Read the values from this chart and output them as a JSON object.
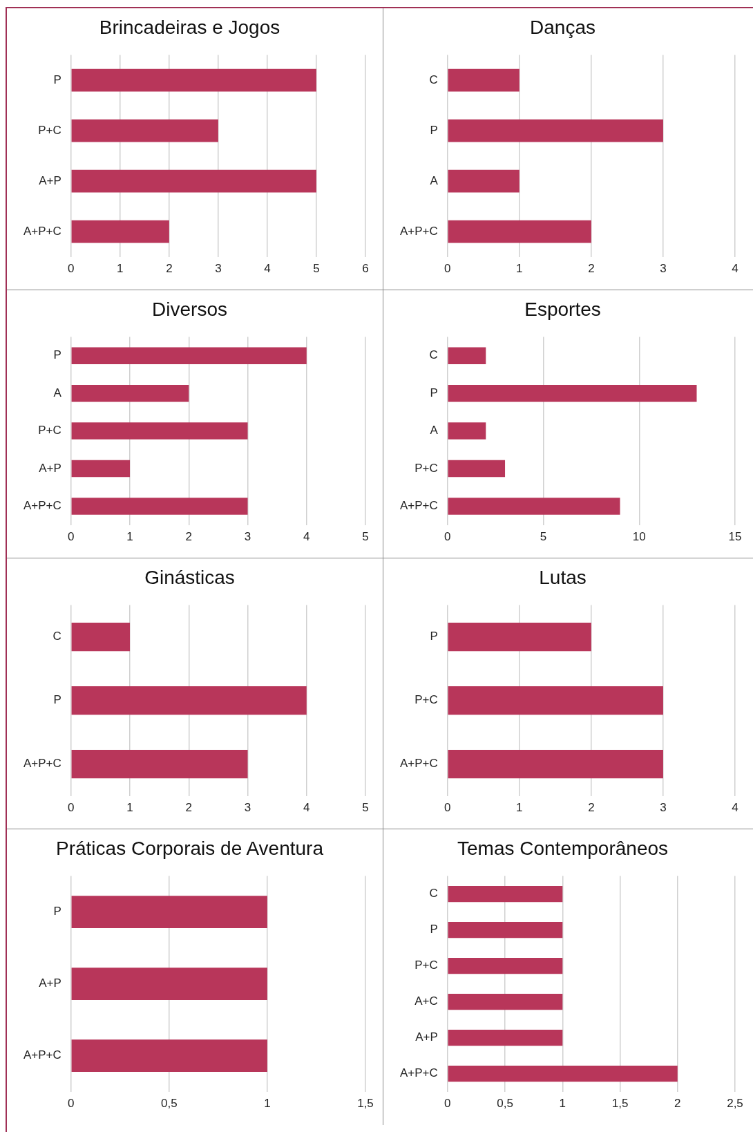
{
  "chart_data": [
    {
      "type": "bar",
      "orientation": "horizontal",
      "title": "Brincadeiras e Jogos",
      "categories": [
        "P",
        "P+C",
        "A+P",
        "A+P+C"
      ],
      "values": [
        5,
        3,
        5,
        2
      ],
      "color": "#b8365a",
      "xlim": [
        0,
        6
      ],
      "xticks": [
        0,
        1,
        2,
        3,
        4,
        5,
        6
      ],
      "grid": "x",
      "legend": false
    },
    {
      "type": "bar",
      "orientation": "horizontal",
      "title": "Danças",
      "categories": [
        "C",
        "P",
        "A",
        "A+P+C"
      ],
      "values": [
        1,
        3,
        1,
        2
      ],
      "color": "#b8365a",
      "xlim": [
        0,
        4
      ],
      "xticks": [
        0,
        1,
        2,
        3,
        4
      ],
      "grid": "x",
      "legend": false
    },
    {
      "type": "bar",
      "orientation": "horizontal",
      "title": "Diversos",
      "categories": [
        "P",
        "A",
        "P+C",
        "A+P",
        "A+P+C"
      ],
      "values": [
        4,
        2,
        3,
        1,
        3
      ],
      "color": "#b8365a",
      "xlim": [
        0,
        5
      ],
      "xticks": [
        0,
        1,
        2,
        3,
        4,
        5
      ],
      "grid": "x",
      "legend": false
    },
    {
      "type": "bar",
      "orientation": "horizontal",
      "title": "Esportes",
      "categories": [
        "C",
        "P",
        "A",
        "P+C",
        "A+P+C"
      ],
      "values": [
        2,
        13,
        2,
        3,
        9
      ],
      "color": "#b8365a",
      "xlim": [
        0,
        15
      ],
      "xticks": [
        0,
        5,
        10,
        15
      ],
      "grid": "x",
      "legend": false
    },
    {
      "type": "bar",
      "orientation": "horizontal",
      "title": "Ginásticas",
      "categories": [
        "C",
        "P",
        "A+P+C"
      ],
      "values": [
        1,
        4,
        3
      ],
      "color": "#b8365a",
      "xlim": [
        0,
        5
      ],
      "xticks": [
        0,
        1,
        2,
        3,
        4,
        5
      ],
      "grid": "x",
      "legend": false
    },
    {
      "type": "bar",
      "orientation": "horizontal",
      "title": "Lutas",
      "categories": [
        "P",
        "P+C",
        "A+P+C"
      ],
      "values": [
        2,
        3,
        3
      ],
      "color": "#b8365a",
      "xlim": [
        0,
        4
      ],
      "xticks": [
        0,
        1,
        2,
        3,
        4
      ],
      "grid": "x",
      "legend": false
    },
    {
      "type": "bar",
      "orientation": "horizontal",
      "title": "Práticas Corporais de Aventura",
      "categories": [
        "P",
        "A+P",
        "A+P+C"
      ],
      "values": [
        1,
        1,
        1
      ],
      "color": "#b8365a",
      "xlim": [
        0,
        1.5
      ],
      "xticks": [
        0,
        {
          "value": 0.5,
          "label": "0,5"
        },
        1,
        {
          "value": 1.5,
          "label": "1,5"
        }
      ],
      "grid": "x",
      "legend": false
    },
    {
      "type": "bar",
      "orientation": "horizontal",
      "title": "Temas Contemporâneos",
      "categories": [
        "C",
        "P",
        "P+C",
        "A+C",
        "A+P",
        "A+P+C"
      ],
      "values": [
        1,
        1,
        1,
        1,
        1,
        2
      ],
      "color": "#b8365a",
      "xlim": [
        0,
        2.5
      ],
      "xticks": [
        0,
        {
          "value": 0.5,
          "label": "0,5"
        },
        1,
        {
          "value": 1.5,
          "label": "1,5"
        },
        2,
        {
          "value": 2.5,
          "label": "2,5"
        }
      ],
      "grid": "x",
      "legend": false
    }
  ]
}
